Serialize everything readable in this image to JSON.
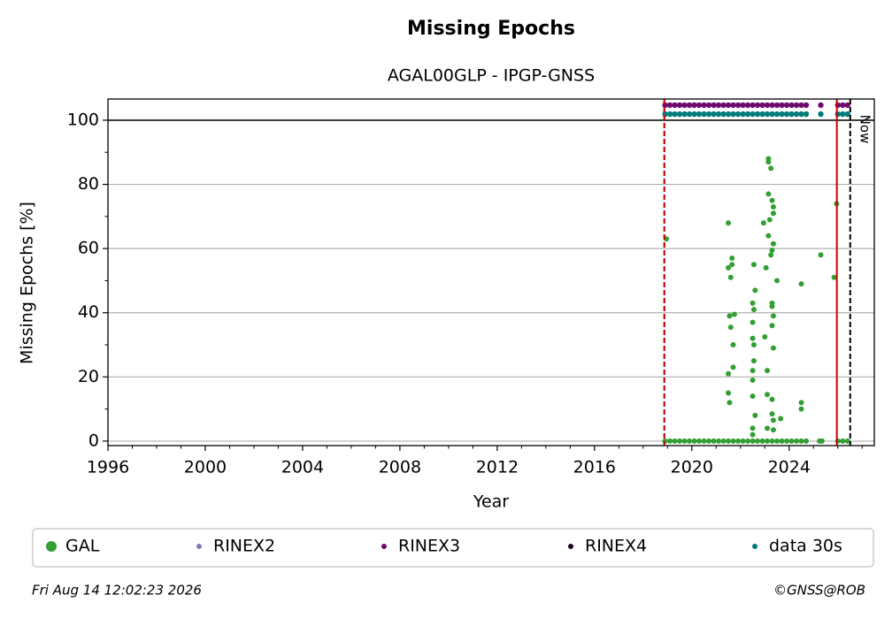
{
  "chart_data": {
    "type": "scatter",
    "title": "Missing Epochs",
    "subtitle": "AGAL00GLP - IPGP-GNSS",
    "x_label": "Year",
    "y_label": "Missing Epochs [%]",
    "xlim": [
      1996,
      2027.5
    ],
    "ylim": [
      -1.4,
      106.6
    ],
    "xticks": [
      1996,
      2000,
      2004,
      2008,
      2012,
      2016,
      2020,
      2024
    ],
    "yticks": [
      0,
      20,
      40,
      60,
      80,
      100
    ],
    "xminorticks": [
      1997,
      1998,
      1999,
      2001,
      2002,
      2003,
      2005,
      2006,
      2007,
      2009,
      2010,
      2011,
      2013,
      2014,
      2015,
      2017,
      2018,
      2019,
      2021,
      2022,
      2023,
      2025,
      2026,
      2027
    ],
    "yminorticks": [
      10,
      30,
      50,
      70,
      90
    ],
    "grid": true,
    "hline": {
      "value": 100,
      "color": "#000000"
    },
    "vlines": [
      {
        "value": 2018.87,
        "color": "#2ca02c",
        "dash": true
      },
      {
        "value": 2018.87,
        "color": "#cc0000",
        "dash": true
      },
      {
        "value": 2025.96,
        "color": "#cc0000",
        "dash": false
      },
      {
        "value": 2026.51,
        "color": "#000000",
        "dash": true,
        "label": "Now"
      }
    ],
    "series": [
      {
        "name": "GAL",
        "color": "#339e33",
        "x": [
          2018.95,
          2021.5,
          2021.5,
          2021.55,
          2021.6,
          2021.6,
          2021.5,
          2021.5,
          2021.55,
          2021.65,
          2021.65,
          2021.7,
          2021.7,
          2021.75,
          2022.55,
          2022.5,
          2022.55,
          2022.6,
          2022.5,
          2022.5,
          2022.55,
          2022.55,
          2022.5,
          2022.5,
          2022.5,
          2022.6,
          2022.5,
          2022.5,
          2022.95,
          2023.05,
          2023.0,
          2023.15,
          2023.15,
          2023.25,
          2023.15,
          2023.3,
          2023.35,
          2023.35,
          2023.2,
          2023.15,
          2023.35,
          2023.3,
          2023.25,
          2023.5,
          2023.3,
          2023.3,
          2023.35,
          2023.3,
          2023.35,
          2023.1,
          2023.1,
          2023.3,
          2023.3,
          2023.35,
          2023.65,
          2023.1,
          2023.35,
          2024.5,
          2024.5,
          2024.5,
          2025.3,
          2025.95,
          2025.85,
          2018.9,
          2019.1,
          2019.3,
          2019.5,
          2019.7,
          2019.9,
          2020.1,
          2020.3,
          2020.5,
          2020.7,
          2020.9,
          2021.1,
          2021.3,
          2021.5,
          2021.7,
          2021.9,
          2022.1,
          2022.3,
          2022.5,
          2022.7,
          2022.9,
          2023.1,
          2023.3,
          2023.5,
          2023.7,
          2023.9,
          2024.1,
          2024.3,
          2024.5,
          2024.7,
          2025.25,
          2025.35,
          2026.0,
          2026.2,
          2026.4
        ],
        "values": [
          63,
          68,
          54,
          39,
          51,
          35.5,
          21,
          15,
          12,
          55,
          57,
          30,
          23,
          39.5,
          55,
          43,
          41,
          47,
          37,
          32,
          30,
          25,
          22,
          19,
          14,
          8,
          4,
          2,
          68,
          54,
          32.5,
          88,
          87,
          85,
          77,
          75,
          73,
          71,
          69,
          64,
          61.5,
          59.5,
          58,
          50,
          43,
          42,
          39,
          36,
          29,
          22,
          14.5,
          13,
          8.5,
          6.5,
          7,
          4,
          3.5,
          49,
          12,
          10,
          58,
          74,
          51,
          0,
          0,
          0,
          0,
          0,
          0,
          0,
          0,
          0,
          0,
          0,
          0,
          0,
          0,
          0,
          0,
          0,
          0,
          0,
          0,
          0,
          0,
          0,
          0,
          0,
          0,
          0,
          0,
          0,
          0,
          0,
          0,
          0,
          0,
          0
        ]
      },
      {
        "name": "RINEX2",
        "color": "#8877bb",
        "x": [],
        "values": []
      },
      {
        "name": "RINEX3",
        "color": "#6e0a6e",
        "x": [
          2018.9,
          2019.1,
          2019.3,
          2019.5,
          2019.7,
          2019.9,
          2020.1,
          2020.3,
          2020.5,
          2020.7,
          2020.9,
          2021.1,
          2021.3,
          2021.5,
          2021.7,
          2021.9,
          2022.1,
          2022.3,
          2022.5,
          2022.7,
          2022.9,
          2023.1,
          2023.3,
          2023.5,
          2023.7,
          2023.9,
          2024.1,
          2024.3,
          2024.5,
          2024.7,
          2025.3,
          2026.0,
          2026.2,
          2026.4
        ],
        "values": [
          104.7,
          104.7,
          104.7,
          104.7,
          104.7,
          104.7,
          104.7,
          104.7,
          104.7,
          104.7,
          104.7,
          104.7,
          104.7,
          104.7,
          104.7,
          104.7,
          104.7,
          104.7,
          104.7,
          104.7,
          104.7,
          104.7,
          104.7,
          104.7,
          104.7,
          104.7,
          104.7,
          104.7,
          104.7,
          104.7,
          104.7,
          104.7,
          104.7,
          104.7
        ]
      },
      {
        "name": "RINEX4",
        "color": "#200020",
        "x": [],
        "values": []
      },
      {
        "name": "data 30s",
        "color": "#007b7b",
        "x": [
          2018.9,
          2019.1,
          2019.3,
          2019.5,
          2019.7,
          2019.9,
          2020.1,
          2020.3,
          2020.5,
          2020.7,
          2020.9,
          2021.1,
          2021.3,
          2021.5,
          2021.7,
          2021.9,
          2022.1,
          2022.3,
          2022.5,
          2022.7,
          2022.9,
          2023.1,
          2023.3,
          2023.5,
          2023.7,
          2023.9,
          2024.1,
          2024.3,
          2024.5,
          2024.7,
          2025.3,
          2026.0,
          2026.2,
          2026.4
        ],
        "values": [
          101.9,
          101.9,
          101.9,
          101.9,
          101.9,
          101.9,
          101.9,
          101.9,
          101.9,
          101.9,
          101.9,
          101.9,
          101.9,
          101.9,
          101.9,
          101.9,
          101.9,
          101.9,
          101.9,
          101.9,
          101.9,
          101.9,
          101.9,
          101.9,
          101.9,
          101.9,
          101.9,
          101.9,
          101.9,
          101.9,
          101.9,
          101.9,
          101.9,
          101.9
        ]
      }
    ],
    "footer_left": "Fri Aug 14 12:02:23 2026",
    "footer_right": "©GNSS@ROB"
  }
}
